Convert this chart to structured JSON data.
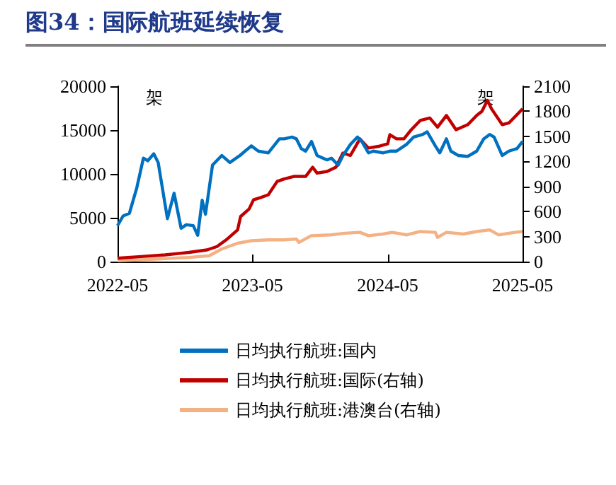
{
  "chart_data": {
    "type": "line",
    "title": "图34：国际航班延续恢复",
    "ylabel": "架",
    "y2label": "架",
    "xlim": [
      "2022-05",
      "2025-05"
    ],
    "xticks": [
      "2022-05",
      "2023-05",
      "2024-05",
      "2025-05"
    ],
    "ylim": [
      0,
      20000
    ],
    "yticks": [
      0,
      5000,
      10000,
      15000,
      20000
    ],
    "y2lim": [
      0,
      2100
    ],
    "y2ticks": [
      0,
      300,
      600,
      900,
      1200,
      1500,
      1800,
      2100
    ],
    "grid": false,
    "legend": "bottom",
    "marker": "none",
    "line_style": "solid",
    "series": [
      {
        "name": "日均执行航班:国内",
        "color": "#0070c0",
        "x": [
          "2022-05-01",
          "2022-05-16",
          "2022-06-02",
          "2022-06-22",
          "2022-07-10",
          "2022-07-22",
          "2022-08-07",
          "2022-08-19",
          "2022-09-13",
          "2022-10-01",
          "2022-10-20",
          "2022-11-03",
          "2022-11-22",
          "2022-12-04",
          "2022-12-16",
          "2022-12-25",
          "2023-01-13",
          "2023-02-07",
          "2023-03-01",
          "2023-03-28",
          "2023-04-28",
          "2023-05-17",
          "2023-06-13",
          "2023-07-13",
          "2023-07-26",
          "2023-08-16",
          "2023-08-28",
          "2023-09-10",
          "2023-09-22",
          "2023-10-08",
          "2023-10-23",
          "2023-11-19",
          "2023-12-01",
          "2023-12-19",
          "2024-01-01",
          "2024-01-22",
          "2024-02-09",
          "2024-02-21",
          "2024-03-10",
          "2024-03-23",
          "2024-04-19",
          "2024-05-07",
          "2024-05-25",
          "2024-06-22",
          "2024-07-10",
          "2024-08-04",
          "2024-08-16",
          "2024-09-07",
          "2024-09-19",
          "2024-10-07",
          "2024-10-19",
          "2024-11-08",
          "2024-12-04",
          "2024-12-28",
          "2025-01-16",
          "2025-02-01",
          "2025-02-13",
          "2025-03-07",
          "2025-03-25",
          "2025-04-16",
          "2025-05-01"
        ],
        "values": [
          4100,
          5200,
          5500,
          8400,
          11800,
          11500,
          12300,
          11300,
          4900,
          7800,
          3800,
          4200,
          4100,
          3000,
          7000,
          5400,
          11000,
          12100,
          11300,
          12100,
          13200,
          12600,
          12400,
          14000,
          14000,
          14200,
          14000,
          12900,
          12600,
          13700,
          12100,
          11600,
          11800,
          11000,
          12100,
          13400,
          14200,
          13700,
          12400,
          12600,
          12400,
          12600,
          12600,
          13400,
          14200,
          14500,
          14800,
          13200,
          12400,
          14000,
          12600,
          12100,
          12000,
          12600,
          14000,
          14500,
          14200,
          12100,
          12600,
          12900,
          13700
        ]
      },
      {
        "name": "日均执行航班:国际(右轴)",
        "color": "#c00000",
        "axis": "y2",
        "x": [
          "2022-05-01",
          "2022-07-04",
          "2022-09-07",
          "2022-11-10",
          "2022-12-29",
          "2023-01-25",
          "2023-02-19",
          "2023-03-22",
          "2023-03-30",
          "2023-04-22",
          "2023-05-04",
          "2023-05-25",
          "2023-06-13",
          "2023-07-07",
          "2023-07-26",
          "2023-08-21",
          "2023-09-22",
          "2023-10-11",
          "2023-10-23",
          "2023-11-19",
          "2023-12-13",
          "2024-01-01",
          "2024-01-21",
          "2024-02-16",
          "2024-03-10",
          "2024-04-06",
          "2024-05-01",
          "2024-05-07",
          "2024-05-25",
          "2024-06-14",
          "2024-07-04",
          "2024-07-28",
          "2024-08-23",
          "2024-09-13",
          "2024-10-07",
          "2024-11-02",
          "2024-12-04",
          "2024-12-28",
          "2025-01-11",
          "2025-01-26",
          "2025-02-06",
          "2025-03-07",
          "2025-03-25",
          "2025-04-14",
          "2025-05-01"
        ],
        "values": [
          40,
          60,
          80,
          110,
          140,
          180,
          260,
          380,
          540,
          630,
          740,
          770,
          800,
          960,
          990,
          1020,
          1020,
          1130,
          1060,
          1080,
          1130,
          1300,
          1270,
          1470,
          1360,
          1380,
          1410,
          1520,
          1470,
          1470,
          1580,
          1690,
          1720,
          1610,
          1750,
          1580,
          1640,
          1750,
          1800,
          1930,
          1830,
          1640,
          1660,
          1750,
          1830
        ]
      },
      {
        "name": "日均执行航班:港澳台(右轴)",
        "color": "#f4b183",
        "axis": "y2",
        "x": [
          "2022-05-01",
          "2022-08-11",
          "2022-11-10",
          "2023-01-04",
          "2023-02-07",
          "2023-03-22",
          "2023-04-28",
          "2023-06-13",
          "2023-07-25",
          "2023-08-28",
          "2023-09-04",
          "2023-10-07",
          "2023-11-28",
          "2024-01-07",
          "2024-02-16",
          "2024-03-10",
          "2024-04-19",
          "2024-05-13",
          "2024-06-22",
          "2024-07-28",
          "2024-09-07",
          "2024-09-13",
          "2024-10-07",
          "2024-11-22",
          "2024-12-28",
          "2025-02-01",
          "2025-02-25",
          "2025-04-10",
          "2025-05-01"
        ],
        "values": [
          10,
          30,
          50,
          70,
          150,
          220,
          250,
          260,
          260,
          270,
          230,
          310,
          320,
          340,
          350,
          310,
          330,
          350,
          320,
          360,
          350,
          290,
          350,
          330,
          360,
          380,
          320,
          350,
          360
        ]
      }
    ]
  }
}
